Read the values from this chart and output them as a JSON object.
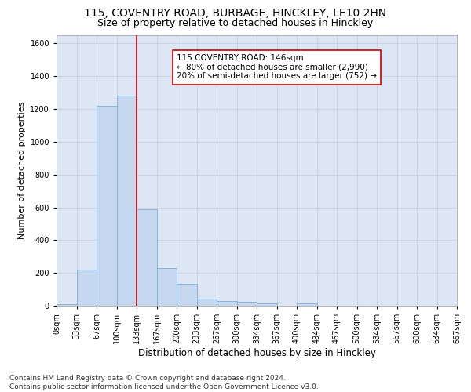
{
  "title1": "115, COVENTRY ROAD, BURBAGE, HINCKLEY, LE10 2HN",
  "title2": "Size of property relative to detached houses in Hinckley",
  "xlabel": "Distribution of detached houses by size in Hinckley",
  "ylabel": "Number of detached properties",
  "bar_values": [
    10,
    220,
    1220,
    1280,
    590,
    230,
    135,
    45,
    28,
    25,
    15,
    0,
    12,
    0,
    0,
    0,
    0,
    0,
    0,
    0
  ],
  "bar_labels": [
    "0sqm",
    "33sqm",
    "67sqm",
    "100sqm",
    "133sqm",
    "167sqm",
    "200sqm",
    "233sqm",
    "267sqm",
    "300sqm",
    "334sqm",
    "367sqm",
    "400sqm",
    "434sqm",
    "467sqm",
    "500sqm",
    "534sqm",
    "567sqm",
    "600sqm",
    "634sqm",
    "667sqm"
  ],
  "bar_color": "#c5d8ef",
  "bar_edge_color": "#7bafd4",
  "vline_x": 4.0,
  "vline_color": "#cc0000",
  "annotation_line1": "115 COVENTRY ROAD: 146sqm",
  "annotation_line2": "← 80% of detached houses are smaller (2,990)",
  "annotation_line3": "20% of semi-detached houses are larger (752) →",
  "annotation_box_color": "white",
  "annotation_box_edge_color": "#cc0000",
  "ylim": [
    0,
    1650
  ],
  "yticks": [
    0,
    200,
    400,
    600,
    800,
    1000,
    1200,
    1400,
    1600
  ],
  "grid_color": "#c8d0dc",
  "background_color": "#dce6f5",
  "footer_text": "Contains HM Land Registry data © Crown copyright and database right 2024.\nContains public sector information licensed under the Open Government Licence v3.0.",
  "title1_fontsize": 10,
  "title2_fontsize": 9,
  "xlabel_fontsize": 8.5,
  "ylabel_fontsize": 8,
  "tick_fontsize": 7,
  "annotation_fontsize": 7.5,
  "footer_fontsize": 6.5
}
